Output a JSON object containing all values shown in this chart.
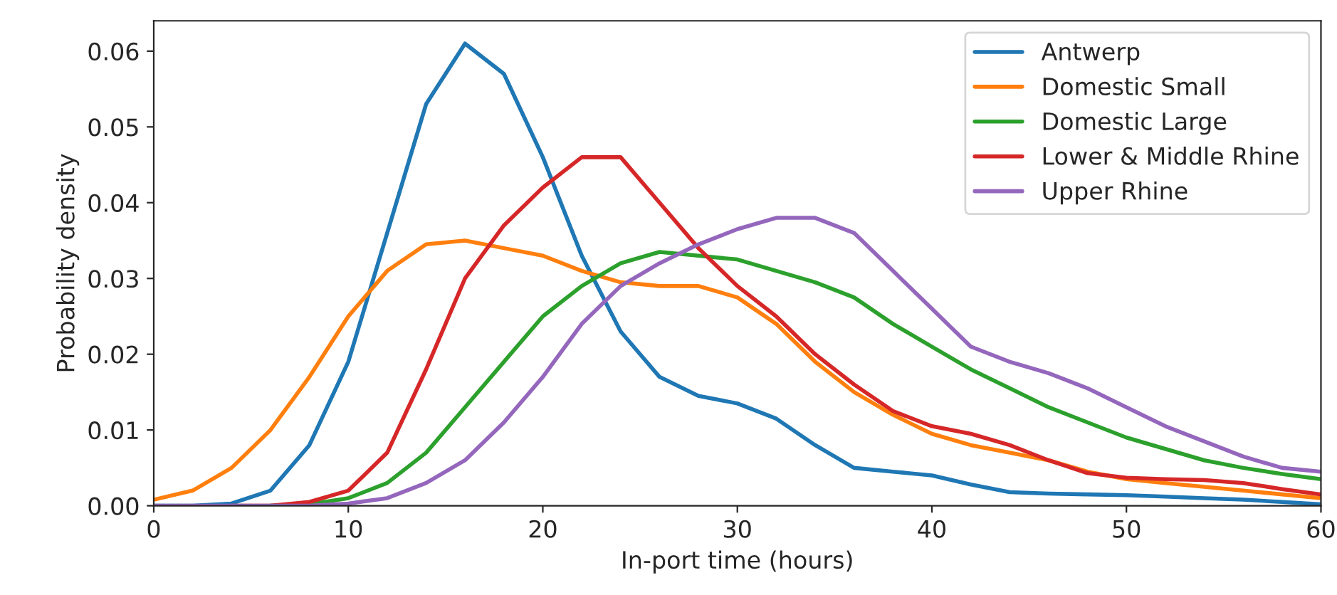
{
  "chart_data": {
    "type": "line",
    "xlabel": "In-port time (hours)",
    "ylabel": "Probability density",
    "x": [
      0,
      2,
      4,
      6,
      8,
      10,
      12,
      14,
      16,
      18,
      20,
      22,
      24,
      26,
      28,
      30,
      32,
      34,
      36,
      38,
      40,
      42,
      44,
      46,
      48,
      50,
      52,
      54,
      56,
      58,
      60
    ],
    "series": [
      {
        "name": "Antwerp",
        "color": "#1f77b4",
        "values": [
          0,
          0,
          0.0003,
          0.002,
          0.008,
          0.019,
          0.036,
          0.053,
          0.061,
          0.057,
          0.046,
          0.033,
          0.023,
          0.017,
          0.0145,
          0.0135,
          0.0115,
          0.008,
          0.005,
          0.0045,
          0.004,
          0.0028,
          0.0018,
          0.0016,
          0.0015,
          0.0014,
          0.0012,
          0.001,
          0.0008,
          0.0005,
          0.0002
        ]
      },
      {
        "name": "Domestic Small",
        "color": "#ff7f0e",
        "values": [
          0.0008,
          0.002,
          0.005,
          0.01,
          0.017,
          0.025,
          0.031,
          0.0345,
          0.035,
          0.034,
          0.033,
          0.031,
          0.0295,
          0.029,
          0.029,
          0.0275,
          0.024,
          0.019,
          0.015,
          0.012,
          0.0095,
          0.008,
          0.007,
          0.006,
          0.0045,
          0.0035,
          0.003,
          0.0025,
          0.002,
          0.0015,
          0.001
        ]
      },
      {
        "name": "Domestic Large",
        "color": "#2ca02c",
        "values": [
          null,
          null,
          null,
          0,
          0.0002,
          0.001,
          0.003,
          0.007,
          0.013,
          0.019,
          0.025,
          0.029,
          0.032,
          0.0335,
          0.033,
          0.0325,
          0.031,
          0.0295,
          0.0275,
          0.024,
          0.021,
          0.018,
          0.0155,
          0.013,
          0.011,
          0.009,
          0.0075,
          0.006,
          0.005,
          0.0042,
          0.0035
        ]
      },
      {
        "name": "Lower & Middle Rhine",
        "color": "#d62728",
        "values": [
          null,
          null,
          0,
          0,
          0.0005,
          0.002,
          0.007,
          0.018,
          0.03,
          0.037,
          0.042,
          0.046,
          0.046,
          0.04,
          0.034,
          0.029,
          0.025,
          0.02,
          0.016,
          0.0125,
          0.0105,
          0.0095,
          0.008,
          0.006,
          0.0043,
          0.0037,
          0.0035,
          0.0034,
          0.003,
          0.0022,
          0.0015
        ]
      },
      {
        "name": "Upper Rhine",
        "color": "#9467bd",
        "values": [
          0,
          0,
          0,
          0,
          0,
          0.0003,
          0.001,
          0.003,
          0.006,
          0.011,
          0.017,
          0.024,
          0.029,
          0.032,
          0.0345,
          0.0365,
          0.038,
          0.038,
          0.036,
          0.031,
          0.026,
          0.021,
          0.019,
          0.0175,
          0.0155,
          0.013,
          0.0105,
          0.0085,
          0.0065,
          0.005,
          0.0045
        ]
      }
    ],
    "xlim": [
      0,
      60
    ],
    "xticks": [
      0,
      10,
      20,
      30,
      40,
      50,
      60
    ],
    "ylim": [
      0,
      0.064
    ],
    "yticks": [
      {
        "value": 0,
        "label": "0.00"
      },
      {
        "value": 0.01,
        "label": "0.01"
      },
      {
        "value": 0.02,
        "label": "0.02"
      },
      {
        "value": 0.03,
        "label": "0.03"
      },
      {
        "value": 0.04,
        "label": "0.04"
      },
      {
        "value": 0.05,
        "label": "0.05"
      },
      {
        "value": 0.06,
        "label": "0.06"
      }
    ],
    "legend": "top right",
    "grid": false,
    "line_style": "solid",
    "marker": "none"
  }
}
